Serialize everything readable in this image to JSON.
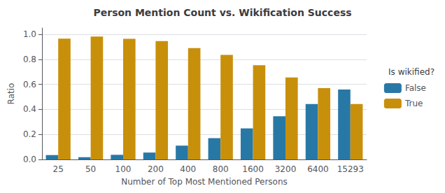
{
  "chart_data": {
    "type": "bar",
    "title": "Person Mention Count vs. Wikification Success",
    "xlabel": "Number of Top Most Mentioned Persons",
    "ylabel": "Ratio",
    "categories": [
      "25",
      "50",
      "100",
      "200",
      "400",
      "800",
      "1600",
      "3200",
      "6400",
      "15293"
    ],
    "series": [
      {
        "name": "False",
        "color": "#2878a6",
        "values": [
          0.035,
          0.018,
          0.037,
          0.055,
          0.11,
          0.17,
          0.248,
          0.345,
          0.443,
          0.558
        ]
      },
      {
        "name": "True",
        "color": "#c8900a",
        "values": [
          0.965,
          0.982,
          0.963,
          0.945,
          0.89,
          0.835,
          0.752,
          0.655,
          0.57,
          0.442
        ]
      }
    ],
    "ylim": [
      0.0,
      1.05
    ],
    "yticks": [
      {
        "value": 0,
        "label": "0.0"
      },
      0.2,
      0.4,
      0.6,
      0.8,
      {
        "value": 1,
        "label": "1.0"
      }
    ],
    "grid": true,
    "legend": "right",
    "legend_title": "Is wikified?"
  }
}
